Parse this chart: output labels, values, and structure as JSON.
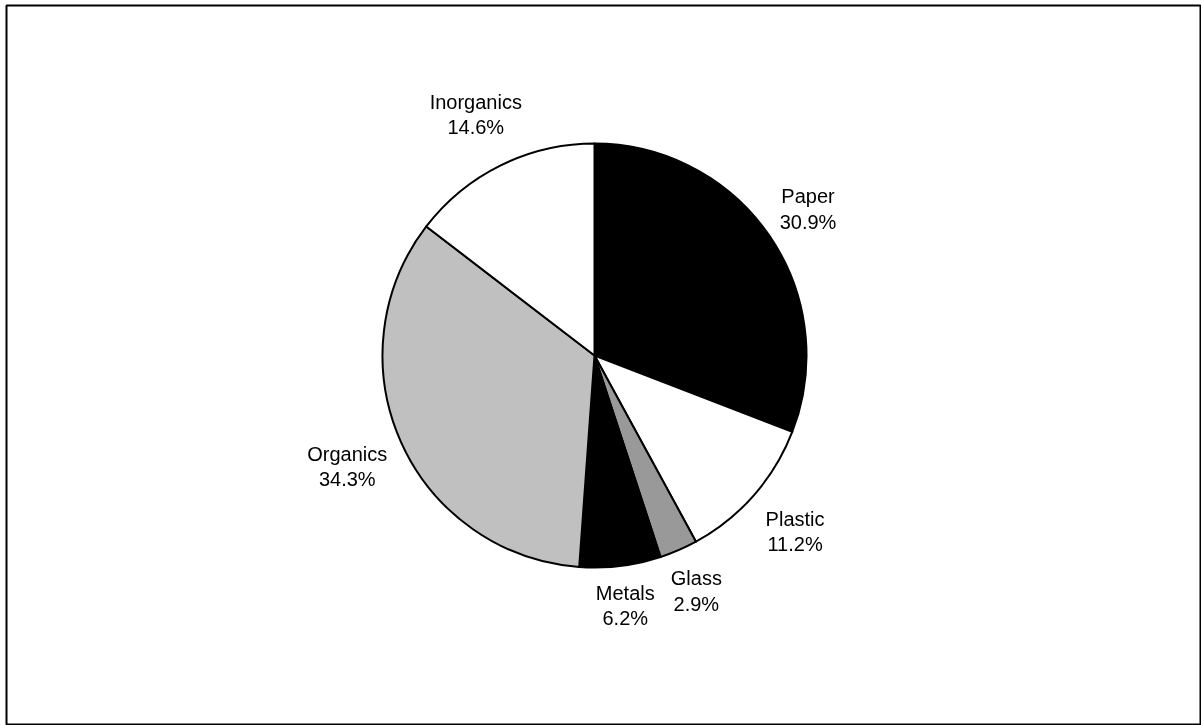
{
  "chart_data": {
    "type": "pie",
    "categories": [
      "Paper",
      "Plastic",
      "Glass",
      "Metals",
      "Organics",
      "Inorganics"
    ],
    "values": [
      30.9,
      11.2,
      2.9,
      6.2,
      34.3,
      14.6
    ],
    "value_labels": [
      "30.9%",
      "11.2%",
      "2.9%",
      "6.2%",
      "34.3%",
      "14.6%"
    ],
    "colors": [
      "#000000",
      "#ffffff",
      "#999999",
      "#000000",
      "#c0c0c0",
      "#ffffff"
    ]
  }
}
